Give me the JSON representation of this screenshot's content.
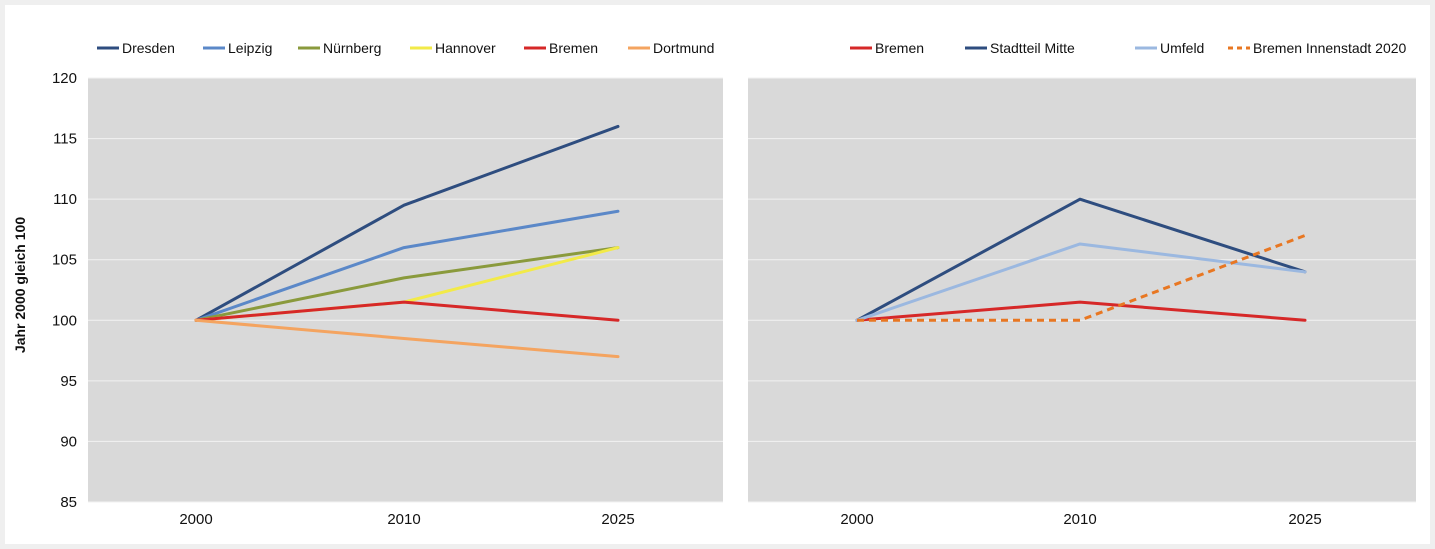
{
  "y_axis_label": "Jahr 2000 gleich 100",
  "chart_data": [
    {
      "type": "line",
      "ylabel": "Jahr 2000 gleich 100",
      "xlabel": "",
      "ylim": [
        85,
        120
      ],
      "yticks": [
        85,
        90,
        95,
        100,
        105,
        110,
        115,
        120
      ],
      "categories": [
        "2000",
        "2010",
        "2025"
      ],
      "grid": true,
      "legend": "top",
      "series": [
        {
          "name": "Dresden",
          "values": [
            100,
            109.5,
            116
          ],
          "color": "#2e4d7f",
          "dashed": false
        },
        {
          "name": "Leipzig",
          "values": [
            100,
            106,
            109
          ],
          "color": "#5b88c8",
          "dashed": false
        },
        {
          "name": "Nürnberg",
          "values": [
            100,
            103.5,
            106
          ],
          "color": "#8a9a3c",
          "dashed": false
        },
        {
          "name": "Hannover",
          "values": [
            100,
            101.5,
            106
          ],
          "color": "#f2ea48",
          "dashed": false
        },
        {
          "name": "Bremen",
          "values": [
            100,
            101.5,
            100
          ],
          "color": "#d62828",
          "dashed": false
        },
        {
          "name": "Dortmund",
          "values": [
            100,
            98.5,
            97
          ],
          "color": "#f4a460",
          "dashed": false
        }
      ]
    },
    {
      "type": "line",
      "ylabel": "",
      "xlabel": "",
      "ylim": [
        85,
        120
      ],
      "categories": [
        "2000",
        "2010",
        "2025"
      ],
      "grid": true,
      "legend": "top",
      "series": [
        {
          "name": "Bremen",
          "values": [
            100,
            101.5,
            100
          ],
          "color": "#d62828",
          "dashed": false
        },
        {
          "name": "Stadtteil Mitte",
          "values": [
            100,
            110,
            104
          ],
          "color": "#2e4d7f",
          "dashed": false
        },
        {
          "name": "Umfeld",
          "values": [
            100,
            106.3,
            104
          ],
          "color": "#9bb8e0",
          "dashed": false
        },
        {
          "name": "Bremen Innenstadt 2020",
          "values": [
            100,
            100,
            107
          ],
          "color": "#e87722",
          "dashed": true
        }
      ]
    }
  ]
}
